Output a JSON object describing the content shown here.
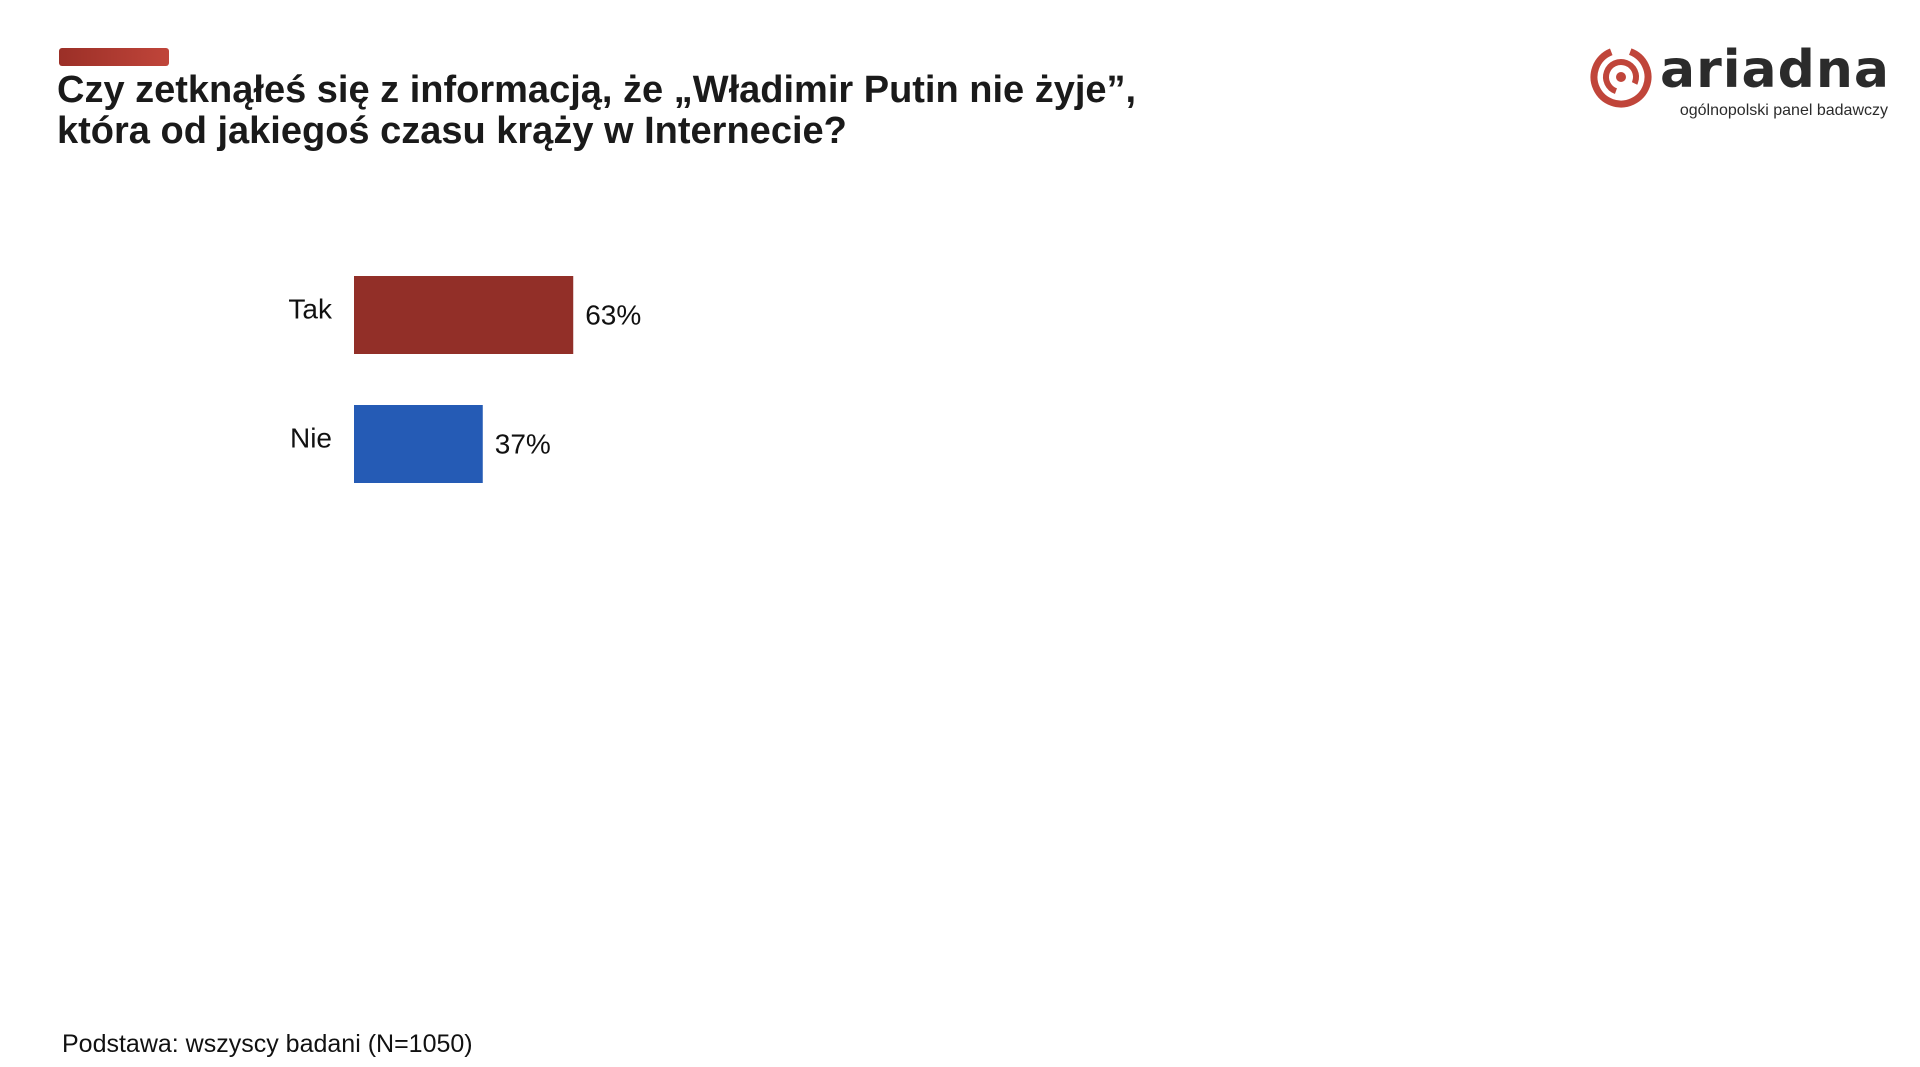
{
  "slide": {
    "title_line1": "Czy zetknąłeś się z informacją, że „Władimir Putin nie żyje”,",
    "title_line2": "która od jakiegoś czasu krąży w Internecie?",
    "footnote": "Podstawa: wszyscy badani (N=1050)",
    "accent_color": "#b43a30"
  },
  "logo": {
    "name": "ariadna",
    "tagline": "ogólnopolski panel badawczy",
    "icon": "spiral-logo-icon",
    "color": "#c0453a"
  },
  "chart_data": {
    "type": "bar",
    "orientation": "horizontal",
    "categories": [
      "Tak",
      "Nie"
    ],
    "values": [
      63,
      37
    ],
    "value_labels": [
      "63%",
      "37%"
    ],
    "colors": [
      "#922f28",
      "#255bb5"
    ],
    "xlim": [
      0,
      100
    ],
    "grid": false,
    "legend": "none",
    "title": "",
    "xlabel": "",
    "ylabel": ""
  }
}
